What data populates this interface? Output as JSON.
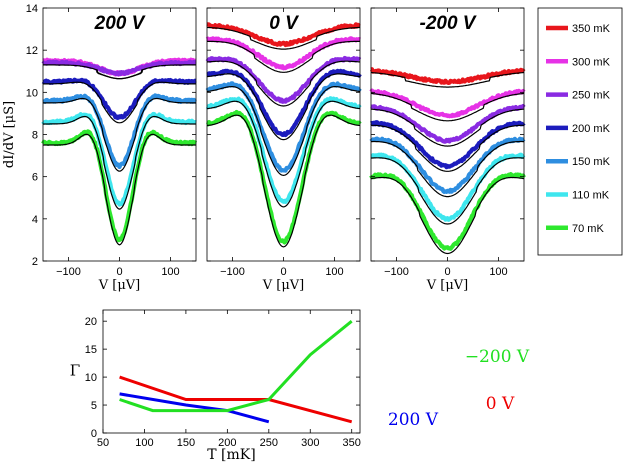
{
  "chart_data": [
    {
      "type": "line",
      "panel": "top-left",
      "title": "200 V",
      "xlabel": "V [μV]",
      "ylabel": "dI/dV [μS]",
      "xlim": [
        -150,
        150
      ],
      "ylim": [
        2,
        14
      ],
      "xticks": [
        -100,
        0,
        100
      ],
      "yticks": [
        2,
        4,
        6,
        8,
        10,
        12,
        14
      ],
      "series": [
        {
          "name": "350 mK",
          "color": "#e8161c",
          "base": null
        },
        {
          "name": "300 mK",
          "color": "#e632e6",
          "base": 11.5,
          "depth": 0.6,
          "width": 38,
          "peak": 0.0
        },
        {
          "name": "250 mK",
          "color": "#8a2be2",
          "base": 11.4,
          "depth": 0.5,
          "width": 36,
          "peak": 0.0
        },
        {
          "name": "200 mK",
          "color": "#1c1cbd",
          "base": 10.5,
          "depth": 1.7,
          "width": 30,
          "peak": 0.15
        },
        {
          "name": "150 mK",
          "color": "#2e8ee0",
          "base": 9.6,
          "depth": 3.1,
          "width": 27,
          "peak": 0.35
        },
        {
          "name": "110 mK",
          "color": "#3ee6ee",
          "base": 8.6,
          "depth": 3.9,
          "width": 26,
          "peak": 0.55
        },
        {
          "name": "70 mK",
          "color": "#2ee82e",
          "base": 7.6,
          "depth": 4.6,
          "width": 25,
          "peak": 0.75
        }
      ]
    },
    {
      "type": "line",
      "panel": "top-middle",
      "title": "0 V",
      "xlabel": "V [μV]",
      "xlim": [
        -150,
        150
      ],
      "ylim": [
        2,
        14
      ],
      "xticks": [
        -100,
        0,
        100
      ],
      "series": [
        {
          "name": "350 mK",
          "color": "#e8161c",
          "base": 13.2,
          "depth": 0.9,
          "width": 55,
          "peak": 0.0
        },
        {
          "name": "300 mK",
          "color": "#e632e6",
          "base": 12.5,
          "depth": 1.3,
          "width": 48,
          "peak": 0.05
        },
        {
          "name": "250 mK",
          "color": "#8a2be2",
          "base": 11.5,
          "depth": 1.9,
          "width": 44,
          "peak": 0.15
        },
        {
          "name": "200 mK",
          "color": "#1c1cbd",
          "base": 10.8,
          "depth": 2.8,
          "width": 40,
          "peak": 0.3
        },
        {
          "name": "150 mK",
          "color": "#2e8ee0",
          "base": 10.1,
          "depth": 3.8,
          "width": 38,
          "peak": 0.45
        },
        {
          "name": "110 mK",
          "color": "#3ee6ee",
          "base": 9.3,
          "depth": 4.5,
          "width": 36,
          "peak": 0.6
        },
        {
          "name": "70 mK",
          "color": "#2ee82e",
          "base": 8.5,
          "depth": 5.6,
          "width": 35,
          "peak": 0.8
        }
      ]
    },
    {
      "type": "line",
      "panel": "top-right",
      "title": "-200 V",
      "xlabel": "V [μV]",
      "xlim": [
        -150,
        150
      ],
      "ylim": [
        2,
        14
      ],
      "xticks": [
        -100,
        0,
        100
      ],
      "series": [
        {
          "name": "350 mK",
          "color": "#e8161c",
          "base": 11.1,
          "depth": 0.6,
          "width": 70,
          "peak": 0.0
        },
        {
          "name": "300 mK",
          "color": "#e632e6",
          "base": 10.1,
          "depth": 1.2,
          "width": 60,
          "peak": 0.0
        },
        {
          "name": "250 mK",
          "color": "#8a2be2",
          "base": 9.3,
          "depth": 1.6,
          "width": 55,
          "peak": 0.05
        },
        {
          "name": "200 mK",
          "color": "#1c1cbd",
          "base": 8.5,
          "depth": 2.0,
          "width": 52,
          "peak": 0.1
        },
        {
          "name": "150 mK",
          "color": "#2e8ee0",
          "base": 7.7,
          "depth": 2.4,
          "width": 50,
          "peak": 0.15
        },
        {
          "name": "110 mK",
          "color": "#3ee6ee",
          "base": 6.9,
          "depth": 2.9,
          "width": 48,
          "peak": 0.2
        },
        {
          "name": "70 mK",
          "color": "#2ee82e",
          "base": 5.9,
          "depth": 3.3,
          "width": 46,
          "peak": 0.3
        }
      ]
    },
    {
      "type": "line",
      "panel": "bottom",
      "xlabel": "T [mK]",
      "ylabel": "Γ",
      "xlim": [
        50,
        360
      ],
      "ylim": [
        0,
        22
      ],
      "xticks": [
        50,
        100,
        150,
        200,
        250,
        300,
        350
      ],
      "yticks": [
        0,
        5,
        10,
        15,
        20
      ],
      "series": [
        {
          "name": "200 V",
          "color": "#0000ee",
          "x": [
            70,
            150,
            200,
            250
          ],
          "y": [
            7,
            5,
            4,
            2
          ]
        },
        {
          "name": "0 V",
          "color": "#ee0000",
          "x": [
            70,
            150,
            250,
            350
          ],
          "y": [
            10,
            6,
            6,
            2
          ]
        },
        {
          "name": "−200 V",
          "color": "#22e022",
          "x": [
            70,
            110,
            200,
            250,
            300,
            350
          ],
          "y": [
            6,
            4,
            4,
            6,
            14,
            20
          ]
        }
      ]
    }
  ],
  "legend": [
    {
      "label": "350 mK",
      "color": "#e8161c"
    },
    {
      "label": "300 mK",
      "color": "#e632e6"
    },
    {
      "label": "250 mK",
      "color": "#8a2be2"
    },
    {
      "label": "200 mK",
      "color": "#1c1cbd"
    },
    {
      "label": "150 mK",
      "color": "#2e8ee0"
    },
    {
      "label": "110 mK",
      "color": "#3ee6ee"
    },
    {
      "label": " 70 mK",
      "color": "#2ee82e"
    }
  ]
}
